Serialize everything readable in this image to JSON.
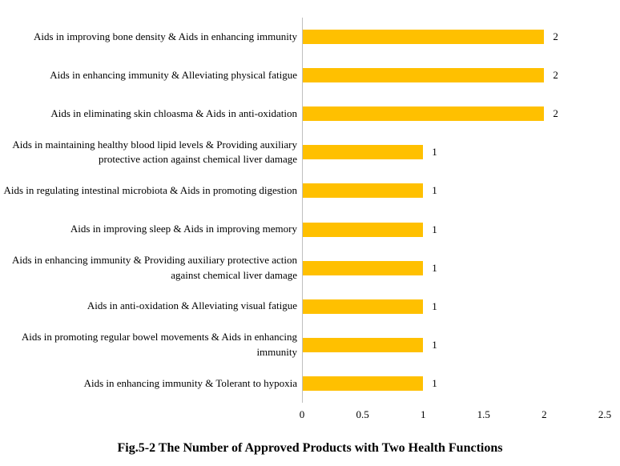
{
  "chart_data": {
    "type": "bar",
    "orientation": "horizontal",
    "title": "Fig.5-2 The Number of Approved Products with Two Health Functions",
    "categories": [
      "Aids in improving bone density & Aids in enhancing immunity",
      "Aids in enhancing immunity & Alleviating physical fatigue",
      "Aids in eliminating skin chloasma & Aids in anti-oxidation",
      "Aids in maintaining healthy blood lipid levels & Providing auxiliary protective action against chemical liver damage",
      "Aids in regulating intestinal microbiota & Aids in promoting digestion",
      "Aids in improving sleep & Aids in improving memory",
      "Aids in enhancing immunity & Providing auxiliary protective action against chemical liver damage",
      "Aids in anti-oxidation & Alleviating visual fatigue",
      "Aids in promoting regular bowel movements & Aids in enhancing immunity",
      "Aids in enhancing immunity & Tolerant to hypoxia"
    ],
    "values": [
      2,
      2,
      2,
      1,
      1,
      1,
      1,
      1,
      1,
      1
    ],
    "data_labels": [
      "2",
      "2",
      "2",
      "1",
      "1",
      "1",
      "1",
      "1",
      "1",
      "1"
    ],
    "xlabel": "",
    "ylabel": "",
    "xlim": [
      0,
      2.5
    ],
    "xticks": [
      0,
      0.5,
      1,
      1.5,
      2,
      2.5
    ],
    "xtick_labels": [
      "0",
      "0.5",
      "1",
      "1.5",
      "2",
      "2.5"
    ],
    "grid": false,
    "legend": false,
    "bar_color": "#FFC000",
    "axis_line_color": "#BFBFBF",
    "text_color": "#000000"
  }
}
